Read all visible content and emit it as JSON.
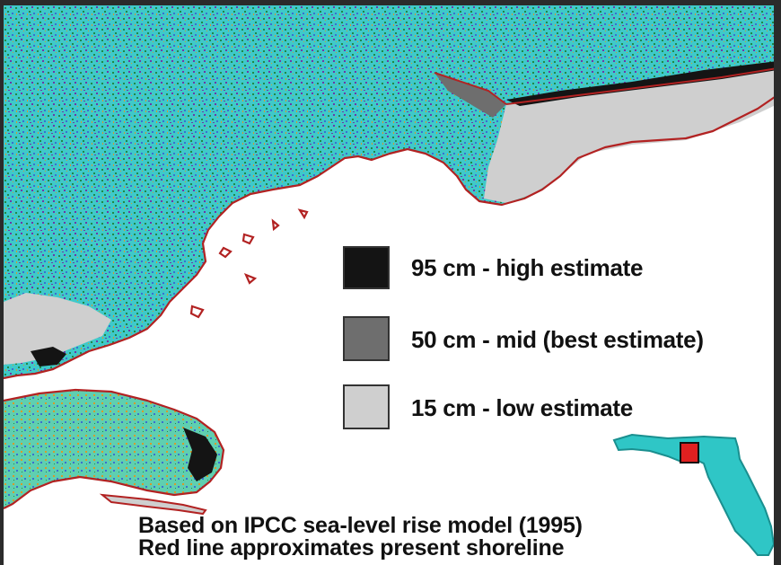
{
  "legend": {
    "items": [
      {
        "label": "95 cm - high estimate",
        "color": "#141414"
      },
      {
        "label": "50 cm - mid (best estimate)",
        "color": "#6e6e6e"
      },
      {
        "label": "15 cm - low estimate",
        "color": "#cfcfcf"
      }
    ]
  },
  "caption": {
    "line1": "Based on IPCC sea-level rise model (1995)",
    "line2": "Red line approximates present shoreline"
  },
  "colors": {
    "land_teal": "#3fc9c9",
    "land_green": "#1f8a4a",
    "land_purple": "#6a3aa8",
    "land_orange": "#d89a2a",
    "shoreline_red": "#b22222",
    "water": "#ffffff",
    "inset_state": "#2fc6c6",
    "inset_highlight": "#e02020"
  },
  "inset": {
    "icons": [
      "florida-state-icon",
      "study-area-marker-icon"
    ]
  }
}
